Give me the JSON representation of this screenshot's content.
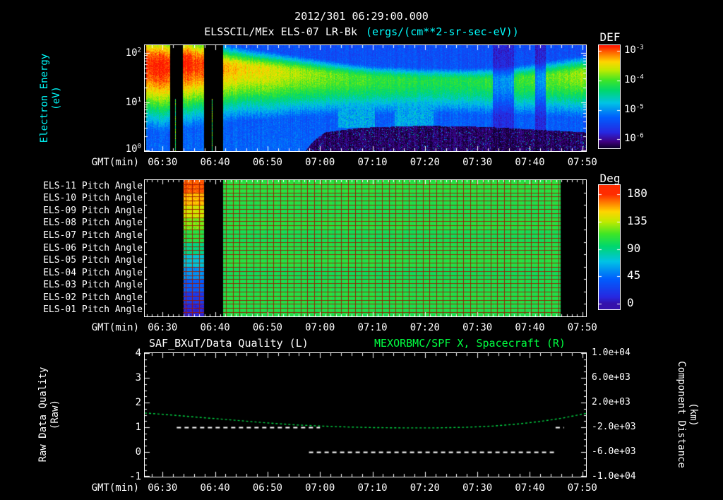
{
  "header": {
    "datetime": "2012/301 06:29:00.000",
    "title": "ELSSCIL/MEx ELS-07 LR-Bk",
    "units": "(ergs/(cm**2-sr-sec-eV))"
  },
  "colors": {
    "background": "#000000",
    "text": "#ffffff",
    "axis_label_cyan": "#00ffff",
    "title_green": "#00ff41",
    "quality_line": "#ffffff",
    "spacecraft_line": "#00d844",
    "grid_red": "#9b1900"
  },
  "time_axis": {
    "range_minutes_of_day": [
      386.6,
      470.7
    ],
    "tick_minutes": [
      390,
      400,
      410,
      420,
      430,
      440,
      450,
      460,
      470
    ],
    "tick_labels": [
      "06:30",
      "06:40",
      "06:50",
      "07:00",
      "07:10",
      "07:20",
      "07:30",
      "07:40",
      "07:50"
    ]
  },
  "chart_data": [
    {
      "id": "electron-energy-spectrogram",
      "type": "heatmap",
      "xlabel": "GMT(min)",
      "ylabel_lines": [
        "Electron Energy",
        "(eV)"
      ],
      "y_scale": "log",
      "y_top_log10": 2.16,
      "y_ticks": [
        {
          "log10": 2,
          "label": "10^2"
        },
        {
          "log10": 1,
          "label": "10^1"
        },
        {
          "log10": 0,
          "label": "10^0"
        }
      ],
      "colorbar": {
        "label": "DEF",
        "display_range_log10": [
          -6.3,
          -2.8
        ],
        "ticks": [
          {
            "log10": -3,
            "label": "10^-3"
          },
          {
            "log10": -4,
            "label": "10^-4"
          },
          {
            "log10": -5,
            "label": "10^-5"
          },
          {
            "log10": -6,
            "label": "10^-6"
          }
        ]
      },
      "data_start_min": 386.9,
      "gaps_min": [
        [
          391.4,
          393.9
        ],
        [
          397.9,
          401.5
        ]
      ],
      "band_keypoint_format": "[minutes, band_center_eV, peak_intensity_0to1, upper_width_decades]",
      "band_keypoints": [
        [
          387,
          60,
          1.0,
          0.55
        ],
        [
          391,
          55,
          1.0,
          0.55
        ],
        [
          394,
          65,
          1.0,
          0.5
        ],
        [
          397.9,
          60,
          0.95,
          0.45
        ],
        [
          401.5,
          52,
          0.88,
          0.32
        ],
        [
          405,
          50,
          0.84,
          0.28
        ],
        [
          410,
          45,
          0.8,
          0.26
        ],
        [
          415,
          41,
          0.75,
          0.24
        ],
        [
          420,
          37,
          0.71,
          0.22
        ],
        [
          425,
          33,
          0.67,
          0.21
        ],
        [
          430,
          30,
          0.64,
          0.2
        ],
        [
          438,
          28,
          0.61,
          0.2
        ],
        [
          446,
          27,
          0.6,
          0.2
        ],
        [
          452,
          27,
          0.62,
          0.21
        ],
        [
          458,
          29,
          0.64,
          0.22
        ],
        [
          464,
          33,
          0.68,
          0.24
        ],
        [
          468,
          36,
          0.72,
          0.26
        ],
        [
          470.7,
          38,
          0.74,
          0.26
        ]
      ],
      "low_energy_cutoff_ev": [
        [
          386.6,
          0.9
        ],
        [
          417,
          0.9
        ],
        [
          421,
          2.4
        ],
        [
          428,
          3.0
        ],
        [
          440,
          3.3
        ],
        [
          452,
          3.1
        ],
        [
          462,
          2.7
        ],
        [
          470.7,
          2.4
        ]
      ],
      "cyan_patches": [
        {
          "t": [
            423.5,
            430.5
          ],
          "e": [
            3,
            12
          ]
        },
        {
          "t": [
            434.3,
            441.7
          ],
          "e": [
            3,
            11
          ]
        }
      ],
      "dark_columns": [
        {
          "t": [
            453,
            457
          ],
          "factor": 0.6
        },
        {
          "t": [
            461,
            463
          ],
          "factor": 0.55
        }
      ]
    },
    {
      "id": "pitch-angle-panels",
      "type": "heatmap",
      "xlabel": "GMT(min)",
      "rows": [
        "ELS-11 Pitch Angle",
        "ELS-10 Pitch Angle",
        "ELS-09 Pitch Angle",
        "ELS-08 Pitch Angle",
        "ELS-07 Pitch Angle",
        "ELS-06 Pitch Angle",
        "ELS-05 Pitch Angle",
        "ELS-04 Pitch Angle",
        "ELS-03 Pitch Angle",
        "ELS-02 Pitch Angle",
        "ELS-01 Pitch Angle"
      ],
      "colorbar": {
        "label": "Deg",
        "display_range_deg": [
          -9,
          195
        ],
        "ticks": [
          {
            "deg": 180,
            "label": "180"
          },
          {
            "deg": 135,
            "label": "135"
          },
          {
            "deg": 90,
            "label": "90"
          },
          {
            "deg": 45,
            "label": "45"
          },
          {
            "deg": 0,
            "label": "0"
          }
        ]
      },
      "stripe": {
        "t": [
          393.9,
          397.9
        ],
        "row_deg": [
          172,
          156,
          140,
          124,
          106,
          90,
          72,
          55,
          38,
          20,
          8
        ]
      },
      "uniform": {
        "t": [
          401.5,
          465.8
        ],
        "value_deg": 103,
        "row_offsets": [
          4,
          2,
          0,
          3,
          -2,
          1,
          3,
          -3,
          0,
          2,
          1
        ]
      }
    },
    {
      "id": "quality-and-distance",
      "type": "line",
      "xlabel": "GMT(min)",
      "title_left": "SAF_BXuT/Data Quality (L)",
      "title_right": "MEXORBMC/SPF X, Spacecraft (R)",
      "ylabel_left_lines": [
        "Raw Data Quality",
        "(Raw)"
      ],
      "ylabel_right_lines": [
        "Component Distance",
        "(km)"
      ],
      "y_left_range": [
        -1,
        4
      ],
      "y_left_ticks": [
        4,
        3,
        2,
        1,
        0,
        -1
      ],
      "y_right_range": [
        -10000,
        10000
      ],
      "y_right_ticks": [
        {
          "km": 10000,
          "label": "1.0e+04"
        },
        {
          "km": 6000,
          "label": "6.0e+03"
        },
        {
          "km": 2000,
          "label": "2.0e+03"
        },
        {
          "km": -2000,
          "label": "-2.0e+03"
        },
        {
          "km": -6000,
          "label": "-6.0e+03"
        },
        {
          "km": -10000,
          "label": "-1.0e+04"
        }
      ],
      "series": [
        {
          "name": "raw-data-quality",
          "axis": "left",
          "style": "dashed",
          "color": "#ffffff",
          "segments": [
            {
              "value": 1,
              "t": [
                392.7,
                420.0
              ]
            },
            {
              "value": 0,
              "t": [
                417.9,
                465.2
              ]
            },
            {
              "value": 1,
              "t": [
                464.9,
                466.5
              ]
            }
          ]
        },
        {
          "name": "spacecraft-x-component",
          "axis": "right",
          "style": "dashed",
          "color": "#00d844",
          "points_min_km": [
            [
              386.6,
              300
            ],
            [
              390,
              100
            ],
            [
              395,
              -250
            ],
            [
              400,
              -600
            ],
            [
              405,
              -950
            ],
            [
              410,
              -1300
            ],
            [
              415,
              -1600
            ],
            [
              420,
              -1800
            ],
            [
              425,
              -1950
            ],
            [
              430,
              -2050
            ],
            [
              436,
              -2100
            ],
            [
              442,
              -2100
            ],
            [
              448,
              -2000
            ],
            [
              453,
              -1800
            ],
            [
              458,
              -1450
            ],
            [
              462,
              -1050
            ],
            [
              466,
              -550
            ],
            [
              469,
              -50
            ],
            [
              470.7,
              250
            ]
          ]
        }
      ]
    }
  ]
}
